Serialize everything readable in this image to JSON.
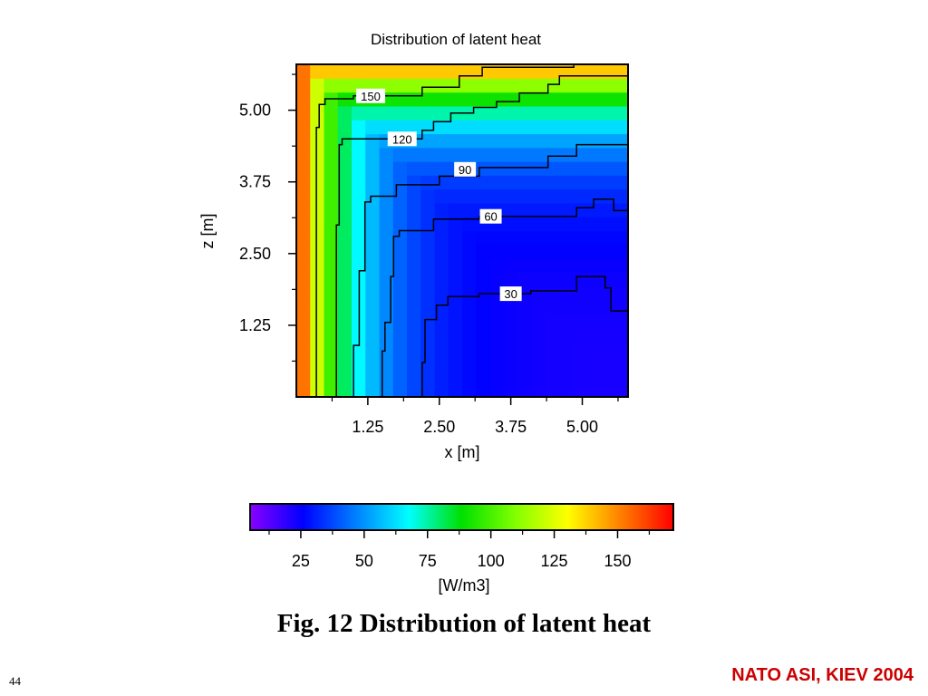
{
  "slide": {
    "caption": "Fig. 12  Distribution of latent heat",
    "page_number": "44",
    "footer": "NATO ASI, KIEV 2004",
    "footer_color": "#cc0000"
  },
  "chart_data": {
    "type": "heatmap",
    "title": "Distribution of latent heat",
    "xlabel": "x [m]",
    "ylabel": "z [m]",
    "xlim": [
      0,
      5.8
    ],
    "ylim": [
      0,
      5.8
    ],
    "x_ticks": [
      "1.25",
      "2.50",
      "3.75",
      "5.00"
    ],
    "y_ticks": [
      "1.25",
      "2.50",
      "3.75",
      "5.00"
    ],
    "x_tick_values": [
      1.25,
      2.5,
      3.75,
      5.0
    ],
    "y_tick_values": [
      1.25,
      2.5,
      3.75,
      5.0
    ],
    "grid": false,
    "colorscale": "rainbow (violet → blue → cyan → green → yellow → red)",
    "colorbar": {
      "label": "[W/m3]",
      "ticks": [
        "25",
        "50",
        "75",
        "100",
        "125",
        "150"
      ],
      "tick_values": [
        25,
        50,
        75,
        100,
        125,
        150
      ],
      "range": [
        5,
        172
      ],
      "colors": [
        "#8a00ff",
        "#0000ff",
        "#0080ff",
        "#00ffff",
        "#00e000",
        "#80ff00",
        "#ffff00",
        "#ff8000",
        "#ff0000"
      ]
    },
    "contour_levels": [
      {
        "level": 30,
        "label": "30"
      },
      {
        "level": 60,
        "label": "60"
      },
      {
        "level": 90,
        "label": "90"
      },
      {
        "level": 120,
        "label": "120"
      },
      {
        "level": 150,
        "label": "150"
      }
    ],
    "contours": [
      {
        "level": 30,
        "points": [
          [
            2.2,
            0
          ],
          [
            2.2,
            0.6
          ],
          [
            2.25,
            0.6
          ],
          [
            2.25,
            1.35
          ],
          [
            2.45,
            1.35
          ],
          [
            2.45,
            1.6
          ],
          [
            2.65,
            1.6
          ],
          [
            2.65,
            1.75
          ],
          [
            3.2,
            1.75
          ],
          [
            3.2,
            1.8
          ],
          [
            4.1,
            1.8
          ],
          [
            4.1,
            1.85
          ],
          [
            4.9,
            1.85
          ],
          [
            4.9,
            2.1
          ],
          [
            5.4,
            2.1
          ],
          [
            5.4,
            1.9
          ],
          [
            5.5,
            1.9
          ],
          [
            5.5,
            1.5
          ],
          [
            5.8,
            1.5
          ]
        ]
      },
      {
        "level": 60,
        "points": [
          [
            1.5,
            0
          ],
          [
            1.5,
            0.8
          ],
          [
            1.55,
            0.8
          ],
          [
            1.55,
            1.3
          ],
          [
            1.65,
            1.3
          ],
          [
            1.65,
            2.1
          ],
          [
            1.7,
            2.1
          ],
          [
            1.7,
            2.8
          ],
          [
            1.8,
            2.8
          ],
          [
            1.8,
            2.9
          ],
          [
            2.4,
            2.9
          ],
          [
            2.4,
            3.1
          ],
          [
            3.2,
            3.1
          ],
          [
            3.2,
            3.15
          ],
          [
            4.9,
            3.15
          ],
          [
            4.9,
            3.3
          ],
          [
            5.2,
            3.3
          ],
          [
            5.2,
            3.45
          ],
          [
            5.55,
            3.45
          ],
          [
            5.55,
            3.25
          ],
          [
            5.8,
            3.25
          ]
        ]
      },
      {
        "level": 90,
        "points": [
          [
            1.0,
            0
          ],
          [
            1.0,
            0.9
          ],
          [
            1.1,
            0.9
          ],
          [
            1.1,
            2.2
          ],
          [
            1.2,
            2.2
          ],
          [
            1.2,
            3.4
          ],
          [
            1.3,
            3.4
          ],
          [
            1.3,
            3.5
          ],
          [
            1.75,
            3.5
          ],
          [
            1.75,
            3.7
          ],
          [
            2.5,
            3.7
          ],
          [
            2.5,
            3.85
          ],
          [
            3.2,
            3.85
          ],
          [
            3.2,
            4.0
          ],
          [
            4.4,
            4.0
          ],
          [
            4.4,
            4.2
          ],
          [
            4.9,
            4.2
          ],
          [
            4.9,
            4.4
          ],
          [
            5.8,
            4.4
          ]
        ]
      },
      {
        "level": 120,
        "points": [
          [
            0.7,
            0
          ],
          [
            0.7,
            3.0
          ],
          [
            0.75,
            3.0
          ],
          [
            0.75,
            4.4
          ],
          [
            0.8,
            4.4
          ],
          [
            0.8,
            4.5
          ],
          [
            2.2,
            4.5
          ],
          [
            2.2,
            4.65
          ],
          [
            2.4,
            4.65
          ],
          [
            2.4,
            4.8
          ],
          [
            2.7,
            4.8
          ],
          [
            2.7,
            4.95
          ],
          [
            3.1,
            4.95
          ],
          [
            3.1,
            5.05
          ],
          [
            3.5,
            5.05
          ],
          [
            3.5,
            5.15
          ],
          [
            3.9,
            5.15
          ],
          [
            3.9,
            5.3
          ],
          [
            4.4,
            5.3
          ],
          [
            4.4,
            5.45
          ],
          [
            4.6,
            5.45
          ],
          [
            4.6,
            5.6
          ],
          [
            5.8,
            5.6
          ]
        ]
      },
      {
        "level": 150,
        "points": [
          [
            0.35,
            0
          ],
          [
            0.35,
            4.7
          ],
          [
            0.4,
            4.7
          ],
          [
            0.4,
            5.1
          ],
          [
            0.5,
            5.1
          ],
          [
            0.5,
            5.2
          ],
          [
            1.0,
            5.2
          ],
          [
            1.0,
            5.25
          ],
          [
            2.2,
            5.25
          ],
          [
            2.2,
            5.4
          ],
          [
            2.85,
            5.4
          ],
          [
            2.85,
            5.6
          ],
          [
            3.25,
            5.6
          ],
          [
            3.25,
            5.75
          ],
          [
            4.85,
            5.75
          ],
          [
            4.85,
            5.85
          ]
        ]
      }
    ],
    "contour_label_positions": [
      {
        "label": "150",
        "x": 1.3,
        "y": 5.25
      },
      {
        "label": "120",
        "x": 1.85,
        "y": 4.5
      },
      {
        "label": "90",
        "x": 2.95,
        "y": 3.97
      },
      {
        "label": "60",
        "x": 3.4,
        "y": 3.15
      },
      {
        "label": "30",
        "x": 3.75,
        "y": 1.8
      }
    ]
  }
}
